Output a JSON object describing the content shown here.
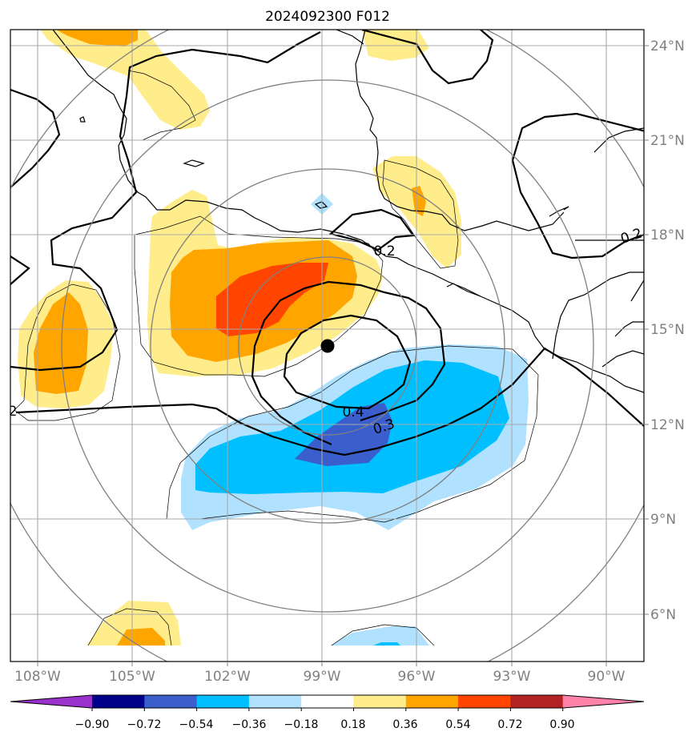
{
  "title": "2024092300 F012",
  "map": {
    "lat_ticks": [
      "24°N",
      "21°N",
      "18°N",
      "15°N",
      "12°N",
      "9°N",
      "6°N"
    ],
    "lon_ticks": [
      "108°W",
      "105°W",
      "102°W",
      "99°W",
      "96°W",
      "93°W",
      "90°W"
    ],
    "storm_center": {
      "lat": 14.4,
      "lon": -98.8
    },
    "contour_labels": [
      "0.2",
      "0.4",
      "0.3",
      "0.2",
      "2"
    ]
  },
  "colorbar": {
    "ticks": [
      "−0.90",
      "−0.72",
      "−0.54",
      "−0.36",
      "−0.18",
      "0.18",
      "0.36",
      "0.54",
      "0.72",
      "0.90"
    ],
    "colors": [
      "#9932cc",
      "#00008b",
      "#3a5fcd",
      "#00bfff",
      "#b0e2ff",
      "#ffffff",
      "#ffec8b",
      "#ffa500",
      "#ff4500",
      "#b22222",
      "#ff82ab"
    ]
  }
}
